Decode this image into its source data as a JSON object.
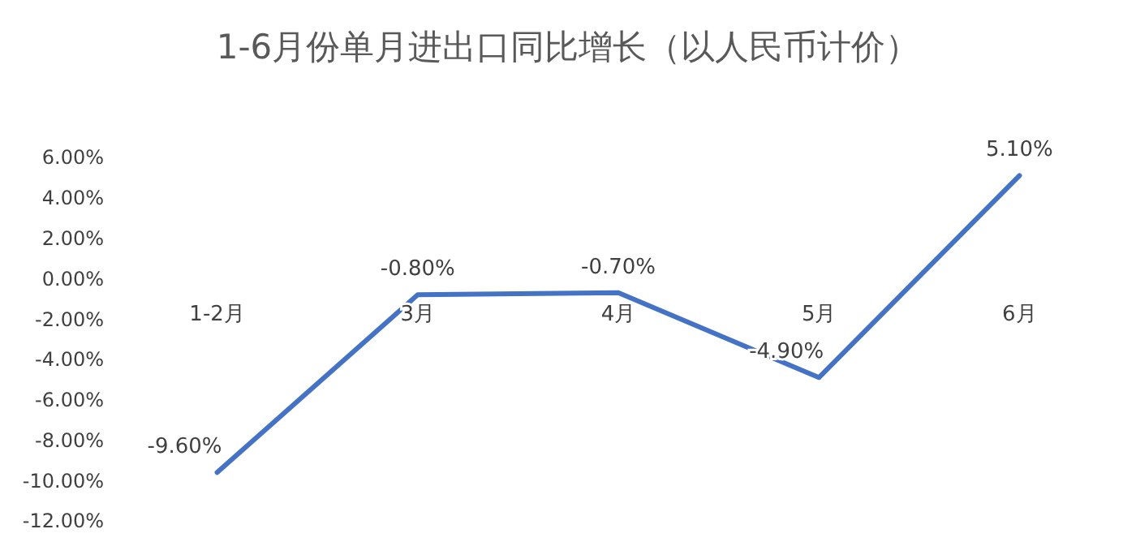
{
  "chart_data": {
    "type": "line",
    "title": "1-6月份单月进出口同比增长（以人民币计价）",
    "categories": [
      "1-2月",
      "3月",
      "4月",
      "5月",
      "6月"
    ],
    "series": [
      {
        "color": "#4472c4",
        "values": [
          -9.6,
          -0.8,
          -0.7,
          -4.9,
          5.1
        ],
        "value_labels": [
          "-9.60%",
          "-0.80%",
          "-0.70%",
          "-4.90%",
          "5.10%"
        ]
      }
    ],
    "ylim": [
      -12,
      6
    ],
    "yticks": [
      {
        "value": 6,
        "label": "6.00%"
      },
      {
        "value": 4,
        "label": "4.00%"
      },
      {
        "value": 2,
        "label": "2.00%"
      },
      {
        "value": 0,
        "label": "0.00%"
      },
      {
        "value": -2,
        "label": "-2.00%"
      },
      {
        "value": -4,
        "label": "-4.00%"
      },
      {
        "value": -6,
        "label": "-6.00%"
      },
      {
        "value": -8,
        "label": "-8.00%"
      },
      {
        "value": -10,
        "label": "-10.00%"
      },
      {
        "value": -12,
        "label": "-12.00%"
      }
    ],
    "grid": false,
    "marker": "none",
    "line_style": "solid"
  }
}
